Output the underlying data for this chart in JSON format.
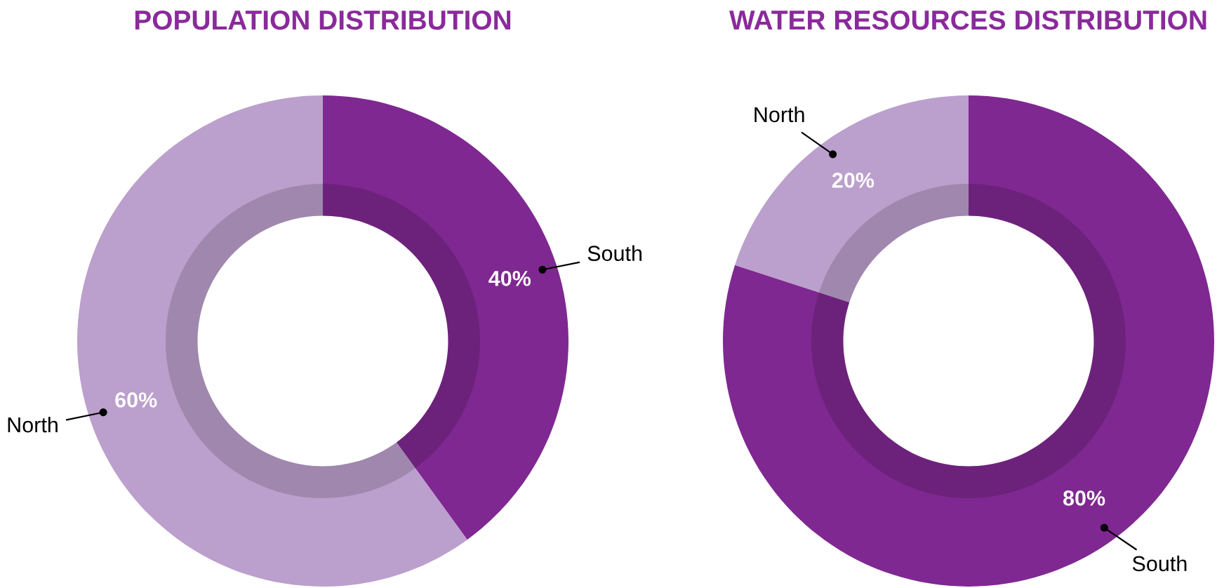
{
  "chart_data": [
    {
      "type": "donut",
      "title": "POPULATION DISTRIBUTION",
      "categories": [
        "South",
        "North"
      ],
      "values": [
        40,
        60
      ],
      "colors": [
        "#7f2891",
        "#bb9fcc"
      ],
      "value_labels": [
        "40%",
        "60%"
      ]
    },
    {
      "type": "donut",
      "title": "WATER RESOURCES DISTRIBUTION",
      "categories": [
        "South",
        "North"
      ],
      "values": [
        80,
        20
      ],
      "colors": [
        "#7f2891",
        "#bb9fcc"
      ],
      "value_labels": [
        "80%",
        "20%"
      ]
    }
  ]
}
